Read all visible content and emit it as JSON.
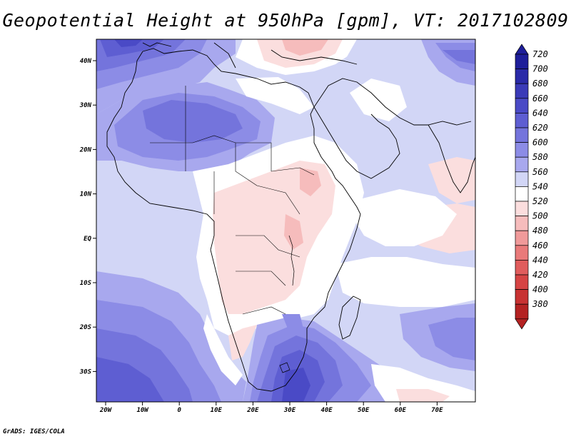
{
  "title": "Geopotential Height at 950hPa [gpm], VT: 2017102809",
  "credit": "GrADS: IGES/COLA",
  "axes": {
    "lon_labels": [
      "20W",
      "10W",
      "0",
      "10E",
      "20E",
      "30E",
      "40E",
      "50E",
      "60E",
      "70E"
    ],
    "lat_labels": [
      "40N",
      "30N",
      "20N",
      "10N",
      "EQ",
      "10S",
      "20S",
      "30S"
    ]
  },
  "colorbar": {
    "levels": [
      {
        "label": "720",
        "color": "#1e1e9a"
      },
      {
        "label": "700",
        "color": "#2a2aa8"
      },
      {
        "label": "680",
        "color": "#3a3ab8"
      },
      {
        "label": "660",
        "color": "#4a4ac6"
      },
      {
        "label": "640",
        "color": "#5e5ed2"
      },
      {
        "label": "620",
        "color": "#7474dc"
      },
      {
        "label": "600",
        "color": "#8c8ce6"
      },
      {
        "label": "580",
        "color": "#a8a8ee"
      },
      {
        "label": "560",
        "color": "#d2d6f6"
      },
      {
        "label": "540",
        "color": "#ffffff"
      },
      {
        "label": "520",
        "color": "#fbdede"
      },
      {
        "label": "500",
        "color": "#f6bcbc"
      },
      {
        "label": "480",
        "color": "#f09a9a"
      },
      {
        "label": "460",
        "color": "#e97a7a"
      },
      {
        "label": "440",
        "color": "#e05c5c"
      },
      {
        "label": "420",
        "color": "#d64444"
      },
      {
        "label": "400",
        "color": "#c83232"
      },
      {
        "label": "380",
        "color": "#b42222"
      }
    ],
    "top_color": "#1e1e9a",
    "bottom_color": "#b42222"
  }
}
